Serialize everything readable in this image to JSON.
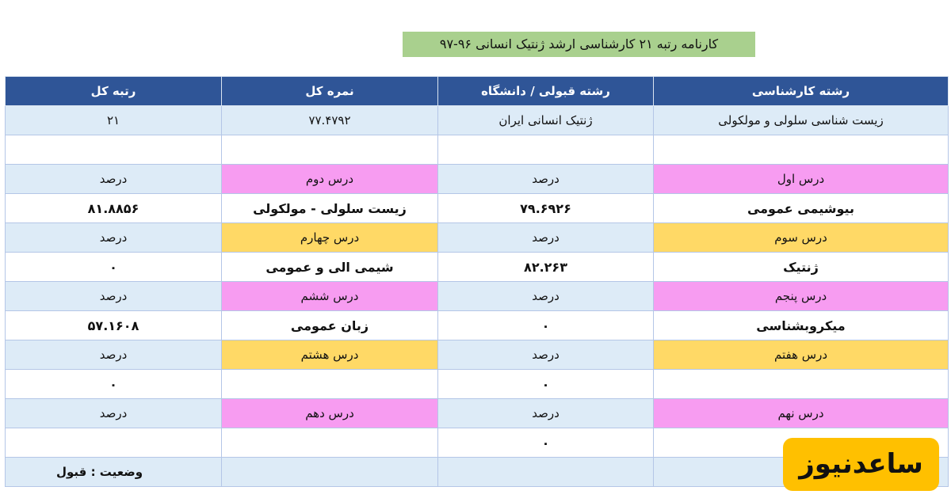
{
  "title": "کارنامه رتبه ۲۱ کارشناسی ارشد ژنتیک انسانی ۹۶-۹۷",
  "table": {
    "header": [
      "رشته کارشناسی",
      "رشته قبولی / دانشگاه",
      "نمره کل",
      "رتبه کل"
    ],
    "rows": [
      [
        "زیست شناسی سلولی و مولکولی",
        "ژنتیک انسانی  ایران",
        "۷۷.۴۷۹۲",
        "۲۱"
      ],
      [
        null,
        null,
        null,
        null
      ],
      [
        "درس اول",
        "درصد",
        "درس دوم",
        "درصد"
      ],
      [
        "بیوشیمی عمومی",
        "۷۹.۶۹۲۶",
        "زیست سلولی - مولکولی",
        "۸۱.۸۸۵۶"
      ],
      [
        "درس سوم",
        "درصد",
        "درس چهارم",
        "درصد"
      ],
      [
        "ژنتیک",
        "۸۲.۲۶۳",
        "شیمی الی و عمومی",
        "۰"
      ],
      [
        "درس پنجم",
        "درصد",
        "درس ششم",
        "درصد"
      ],
      [
        "میکروبشناسی",
        "۰",
        "زبان عمومی",
        "۵۷.۱۶۰۸"
      ],
      [
        "درس هفتم",
        "درصد",
        "درس هشتم",
        "درصد"
      ],
      [
        null,
        "۰",
        null,
        "۰"
      ],
      [
        "درس نهم",
        "درصد",
        "درس دهم",
        "درصد"
      ],
      [
        null,
        "۰",
        null,
        null
      ],
      [
        null,
        null,
        null,
        "وضعیت  :  قبول"
      ]
    ]
  },
  "logo": "ساعدنیوز"
}
